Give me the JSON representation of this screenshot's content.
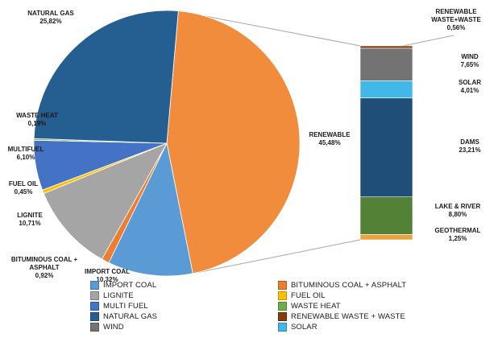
{
  "chart_data": {
    "type": "pie",
    "subtype": "pie-of-bar",
    "title": "",
    "pie": {
      "start_angle_deg": 5,
      "slices": [
        {
          "id": "renewable",
          "label": "RENEWABLE",
          "pct": "45,48%",
          "value": 45.48,
          "color": "#F08C3C"
        },
        {
          "id": "import-coal",
          "label": "IMPORT COAL",
          "pct": "10,32%",
          "value": 10.32,
          "color": "#5B9BD5"
        },
        {
          "id": "bituminous-coal-asphalt",
          "label": "BITUMINOUS COAL + ASPHALT",
          "pct": "0,92%",
          "value": 0.92,
          "color": "#ED7D31"
        },
        {
          "id": "lignite",
          "label": "LIGNITE",
          "pct": "10,71%",
          "value": 10.71,
          "color": "#A5A5A5"
        },
        {
          "id": "fuel-oil",
          "label": "FUEL OIL",
          "pct": "0,45%",
          "value": 0.45,
          "color": "#FFC000"
        },
        {
          "id": "multifuel",
          "label": "MULTIFUEL",
          "pct": "6,10%",
          "value": 6.1,
          "color": "#4472C4"
        },
        {
          "id": "waste-heat",
          "label": "WASTE HEAT",
          "pct": "0,19%",
          "value": 0.19,
          "color": "#70AD47"
        },
        {
          "id": "natural-gas",
          "label": "NATURAL GAS",
          "pct": "25,82%",
          "value": 25.82,
          "color": "#255E91"
        }
      ]
    },
    "bar": {
      "total_value": 45.48,
      "segments": [
        {
          "id": "renewable-waste-waste",
          "label": "RENEWABLE WASTE+WASTE",
          "pct": "0,56%",
          "value": 0.56,
          "color": "#843C0C"
        },
        {
          "id": "wind",
          "label": "WIND",
          "pct": "7,65%",
          "value": 7.65,
          "color": "#737373"
        },
        {
          "id": "solar",
          "label": "SOLAR",
          "pct": "4,01%",
          "value": 4.01,
          "color": "#41B8E8"
        },
        {
          "id": "dams",
          "label": "DAMS",
          "pct": "23,21%",
          "value": 23.21,
          "color": "#1F4E79"
        },
        {
          "id": "lake-river",
          "label": "LAKE & RIVER",
          "pct": "8,80%",
          "value": 8.8,
          "color": "#538135"
        },
        {
          "id": "geothermal",
          "label": "GEOTHERMAL",
          "pct": "1,25%",
          "value": 1.25,
          "color": "#E8A33D"
        }
      ]
    },
    "legend": {
      "position": "bottom",
      "items": [
        {
          "id": "import-coal",
          "label": "IMPORT COAL",
          "color": "#5B9BD5"
        },
        {
          "id": "bituminous-coal-asphalt",
          "label": "BITUMINOUS COAL + ASPHALT",
          "color": "#ED7D31"
        },
        {
          "id": "lignite",
          "label": "LIGNITE",
          "color": "#A5A5A5"
        },
        {
          "id": "fuel-oil",
          "label": "FUEL OIL",
          "color": "#FFC000"
        },
        {
          "id": "multi-fuel",
          "label": "MULTI FUEL",
          "color": "#4472C4"
        },
        {
          "id": "waste-heat",
          "label": "WASTE HEAT",
          "color": "#70AD47"
        },
        {
          "id": "natural-gas",
          "label": "NATURAL GAS",
          "color": "#255E91"
        },
        {
          "id": "renewable-waste-waste",
          "label": "RENEWABLE WASTE + WASTE",
          "color": "#843C0C"
        },
        {
          "id": "wind",
          "label": "WIND",
          "color": "#737373"
        },
        {
          "id": "solar",
          "label": "SOLAR",
          "color": "#41B8E8"
        }
      ]
    },
    "connector_line_color": "#A6A6A6"
  }
}
